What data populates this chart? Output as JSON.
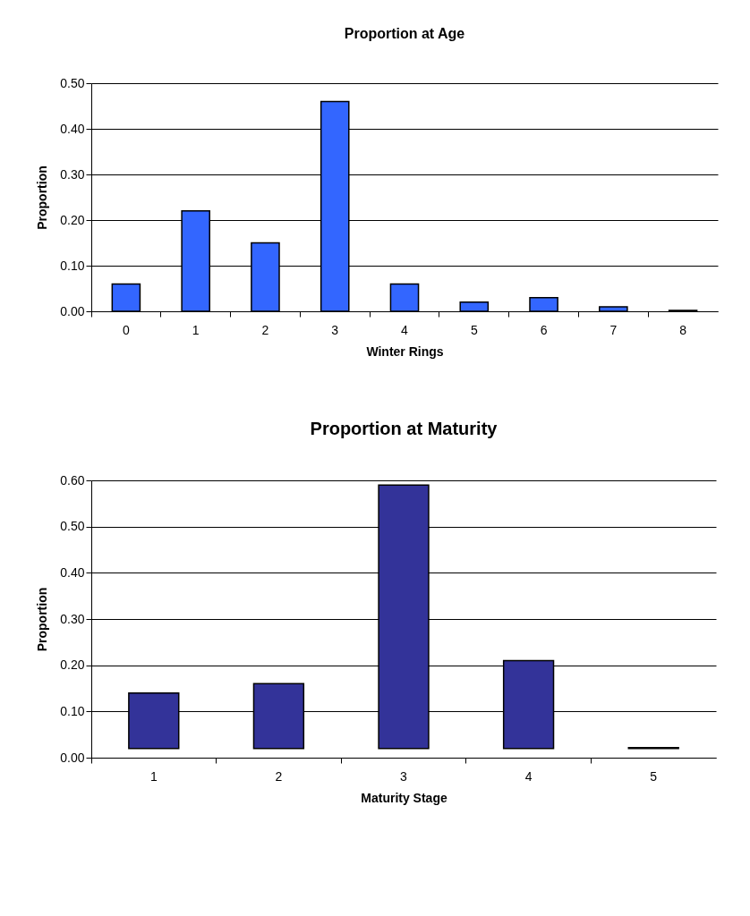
{
  "chart_data": [
    {
      "type": "bar",
      "title": "Proportion at Age",
      "xlabel": "Winter Rings",
      "ylabel": "Proportion",
      "categories": [
        "0",
        "1",
        "2",
        "3",
        "4",
        "5",
        "6",
        "7",
        "8"
      ],
      "values": [
        0.06,
        0.22,
        0.15,
        0.46,
        0.06,
        0.02,
        0.03,
        0.01,
        0.002
      ],
      "color": "#3366ff",
      "ylim": [
        0,
        0.5
      ],
      "yticks": [
        {
          "value": 0,
          "label": "0.00"
        },
        {
          "value": 0.1,
          "label": "0.10"
        },
        {
          "value": 0.2,
          "label": "0.20"
        },
        {
          "value": 0.3,
          "label": "0.30"
        },
        {
          "value": 0.4,
          "label": "0.40"
        },
        {
          "value": 0.5,
          "label": "0.50"
        }
      ],
      "grid": "y"
    },
    {
      "type": "bar",
      "title": "Proportion at Maturity",
      "xlabel": "Maturity Stage",
      "ylabel": "Proportion",
      "categories": [
        "1",
        "2",
        "3",
        "4",
        "5"
      ],
      "base": [
        0.02,
        0.02,
        0.02,
        0.02,
        0.02
      ],
      "values": [
        0.12,
        0.14,
        0.57,
        0.19,
        0.002
      ],
      "color": "#333399",
      "ylim": [
        0,
        0.6
      ],
      "yticks": [
        {
          "value": 0,
          "label": "0.00"
        },
        {
          "value": 0.1,
          "label": "0.10"
        },
        {
          "value": 0.2,
          "label": "0.20"
        },
        {
          "value": 0.3,
          "label": "0.30"
        },
        {
          "value": 0.4,
          "label": "0.40"
        },
        {
          "value": 0.5,
          "label": "0.50"
        },
        {
          "value": 0.6,
          "label": "0.60"
        }
      ],
      "grid": "y"
    }
  ]
}
